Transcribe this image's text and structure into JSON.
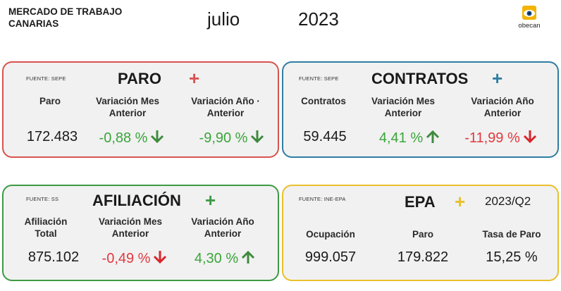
{
  "header": {
    "title": "MERCADO DE TRABAJO CANARIAS",
    "month": "julio",
    "year": "2023",
    "logo_text": "obecan"
  },
  "colors": {
    "paro": "#d9534f",
    "contratos": "#2e7ea3",
    "afiliacion": "#3e9a45",
    "epa": "#e8c02b",
    "positive": "#3aa53a",
    "negative": "#e0393e"
  },
  "paro": {
    "source": "FUENTE: SEPE",
    "title": "PARO",
    "plus": "+",
    "col1_label": "Paro",
    "col2_label": "Variación Mes Anterior",
    "col3_label": "Variación Año · Anterior",
    "value": "172.483",
    "var_month": "-0,88 %",
    "var_month_icon": "arrow-down-green",
    "var_year": "-9,90 %",
    "var_year_icon": "arrow-down-green"
  },
  "contratos": {
    "source": "FUENTE: SEPE",
    "title": "CONTRATOS",
    "plus": "+",
    "col1_label": "Contratos",
    "col2_label": "Variación Mes Anterior",
    "col3_label": "Variación Año Anterior",
    "value": "59.445",
    "var_month": "4,41 %",
    "var_month_icon": "arrow-up-green",
    "var_year": "-11,99 %",
    "var_year_icon": "arrow-down-red"
  },
  "afiliacion": {
    "source": "FUENTE: SS",
    "title": "AFILIACIÓN",
    "plus": "+",
    "col1_label": "Afiliación Total",
    "col2_label": "Variación Mes Anterior",
    "col3_label": "Variación Año Anterior",
    "value": "875.102",
    "var_month": "-0,49 %",
    "var_month_icon": "arrow-down-red",
    "var_year": "4,30 %",
    "var_year_icon": "arrow-up-green"
  },
  "epa": {
    "source": "FUENTE: INE-EPA",
    "title": "EPA",
    "plus": "+",
    "quarter": "2023/Q2",
    "col1_label": "Ocupación",
    "col2_label": "Paro",
    "col3_label": "Tasa de Paro",
    "ocupacion": "999.057",
    "paro": "179.822",
    "tasa": "15,25 %"
  }
}
